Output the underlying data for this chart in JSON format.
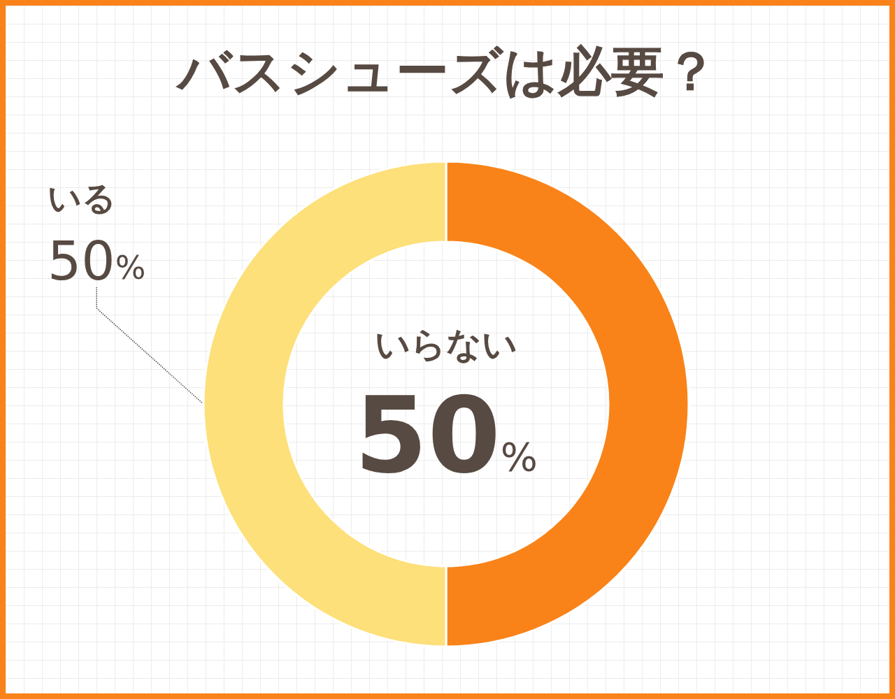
{
  "chart_data": {
    "type": "donut",
    "title": "バスシューズは必要？",
    "categories": [
      "いらない",
      "いる"
    ],
    "values": [
      50,
      50
    ],
    "colors": [
      "#f98318",
      "#fde07a"
    ],
    "value_labels": [
      "50%",
      "50%"
    ]
  }
}
